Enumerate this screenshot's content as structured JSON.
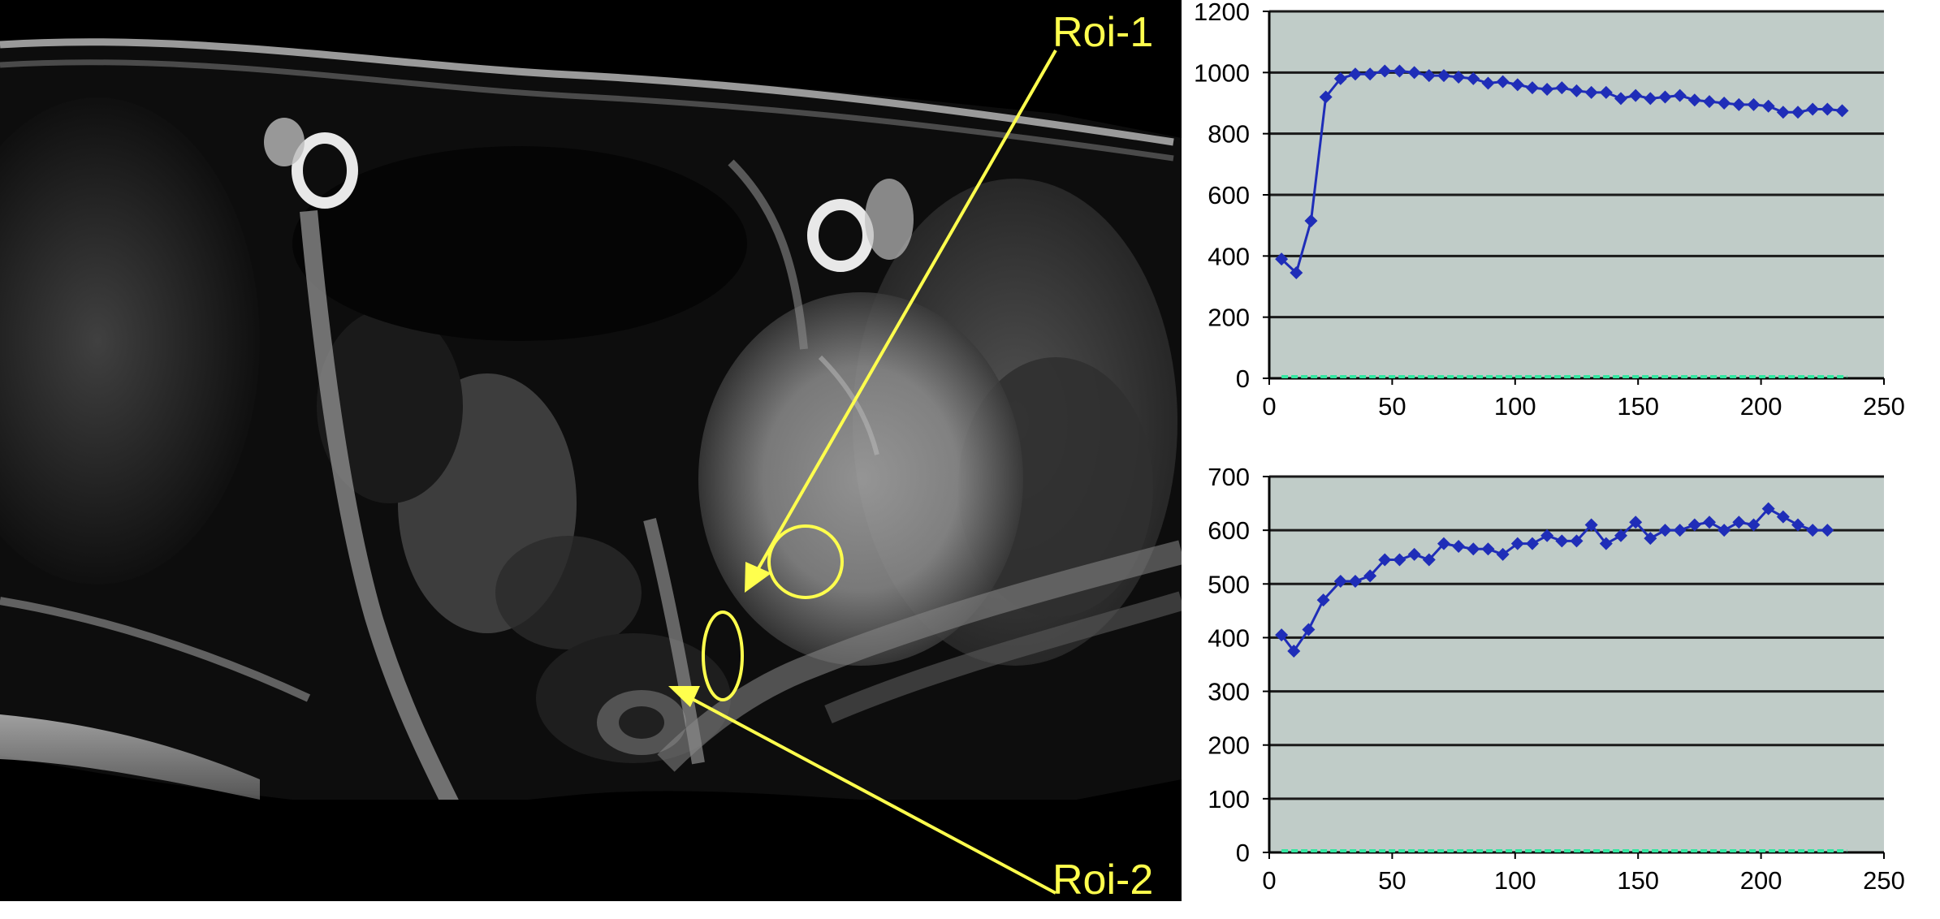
{
  "annotations": {
    "roi1_label": "Roi-1",
    "roi2_label": "Roi-2",
    "annotation_color": "#ffff4d"
  },
  "colors": {
    "plot_background": "#c0ccc8",
    "gridline": "#1a1a1a",
    "series_line": "#1f2db8",
    "baseline_series": "#33e6a0"
  },
  "chart_data": [
    {
      "type": "line",
      "title": "",
      "xlabel": "",
      "ylabel": "",
      "xlim": [
        0,
        250
      ],
      "ylim": [
        0,
        1200
      ],
      "x_ticks": [
        "0",
        "50",
        "100",
        "150",
        "200",
        "250"
      ],
      "y_ticks": [
        "0",
        "200",
        "400",
        "600",
        "800",
        "1000",
        "1200"
      ],
      "grid": true,
      "series": [
        {
          "x": [
            5,
            11,
            17,
            23,
            29,
            35,
            41,
            47,
            53,
            59,
            65,
            71,
            77,
            83,
            89,
            95,
            101,
            107,
            113,
            119,
            125,
            131,
            137,
            143,
            149,
            155,
            161,
            167,
            173,
            179,
            185,
            191,
            197,
            203,
            209,
            215,
            221,
            227,
            233
          ],
          "values": [
            390,
            345,
            515,
            920,
            980,
            995,
            995,
            1005,
            1005,
            1000,
            990,
            990,
            985,
            980,
            965,
            970,
            960,
            950,
            945,
            950,
            940,
            935,
            935,
            915,
            925,
            915,
            920,
            925,
            910,
            905,
            900,
            895,
            895,
            890,
            870,
            870,
            880,
            880,
            875
          ]
        },
        {
          "x": [
            5,
            15,
            25,
            35,
            45,
            55,
            65,
            75,
            85,
            95,
            105,
            115,
            125,
            135,
            145,
            155,
            165,
            175,
            185,
            195,
            205,
            215,
            225,
            235
          ],
          "values": [
            0,
            0,
            0,
            0,
            0,
            0,
            0,
            0,
            0,
            0,
            0,
            0,
            0,
            0,
            0,
            0,
            0,
            0,
            0,
            0,
            0,
            0,
            0,
            0
          ]
        }
      ]
    },
    {
      "type": "line",
      "title": "",
      "xlabel": "",
      "ylabel": "",
      "xlim": [
        0,
        250
      ],
      "ylim": [
        0,
        700
      ],
      "x_ticks": [
        "0",
        "50",
        "100",
        "150",
        "200",
        "250"
      ],
      "y_ticks": [
        "0",
        "100",
        "200",
        "300",
        "400",
        "500",
        "600",
        "700"
      ],
      "grid": true,
      "series": [
        {
          "x": [
            5,
            10,
            16,
            22,
            29,
            35,
            41,
            47,
            53,
            59,
            65,
            71,
            77,
            83,
            89,
            95,
            101,
            107,
            113,
            119,
            125,
            131,
            137,
            143,
            149,
            155,
            161,
            167,
            173,
            179,
            185,
            191,
            197,
            203,
            209,
            215,
            221,
            227
          ],
          "values": [
            405,
            375,
            415,
            470,
            505,
            505,
            515,
            545,
            545,
            555,
            545,
            575,
            570,
            565,
            565,
            555,
            575,
            575,
            590,
            580,
            580,
            610,
            575,
            590,
            615,
            585,
            600,
            600,
            610,
            615,
            600,
            615,
            610,
            640,
            625,
            610,
            600,
            600
          ]
        },
        {
          "x": [
            5,
            15,
            25,
            35,
            45,
            55,
            65,
            75,
            85,
            95,
            105,
            115,
            125,
            135,
            145,
            155,
            165,
            175,
            185,
            195,
            205,
            215,
            225,
            235
          ],
          "values": [
            0,
            0,
            0,
            0,
            0,
            0,
            0,
            0,
            0,
            0,
            0,
            0,
            0,
            0,
            0,
            0,
            0,
            0,
            0,
            0,
            0,
            0,
            0,
            0
          ]
        }
      ]
    }
  ]
}
